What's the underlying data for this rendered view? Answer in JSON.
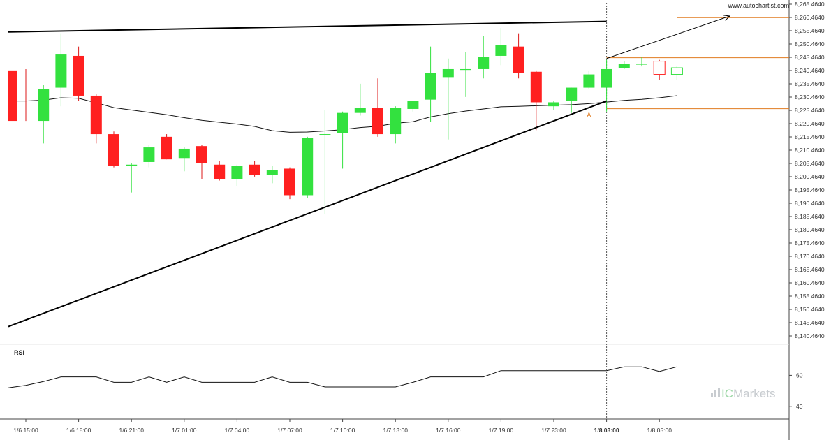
{
  "source_text": "www.autochartist.com",
  "brand": {
    "prefix": "IC",
    "name": "Markets"
  },
  "chart_data": {
    "type": "candlestick",
    "price_axis": {
      "min": 8140.464,
      "max": 8265.464,
      "ticks": [
        "8,265.4640",
        "8,260.4640",
        "8,255.4640",
        "8,250.4640",
        "8,245.4640",
        "8,240.4640",
        "8,235.4640",
        "8,230.4640",
        "8,225.4640",
        "8,220.4640",
        "8,215.4640",
        "8,210.4640",
        "8,205.4640",
        "8,200.4640",
        "8,195.4640",
        "8,190.4640",
        "8,185.4640",
        "8,180.4640",
        "8,175.4640",
        "8,170.4640",
        "8,165.4640",
        "8,160.4640",
        "8,155.4640",
        "8,150.4640",
        "8,145.4640",
        "8,140.4640"
      ]
    },
    "time_axis": {
      "labels": [
        {
          "bar": 0,
          "text": "1/6 15:00"
        },
        {
          "bar": 3,
          "text": "1/6 18:00"
        },
        {
          "bar": 6,
          "text": "1/6 21:00"
        },
        {
          "bar": 9,
          "text": "1/7 01:00"
        },
        {
          "bar": 12,
          "text": "1/7 04:00"
        },
        {
          "bar": 15,
          "text": "1/7 07:00"
        },
        {
          "bar": 18,
          "text": "1/7 10:00"
        },
        {
          "bar": 21,
          "text": "1/7 13:00"
        },
        {
          "bar": 24,
          "text": "1/7 16:00"
        },
        {
          "bar": 27,
          "text": "1/7 19:00"
        },
        {
          "bar": 30,
          "text": "1/7 23:00"
        },
        {
          "bar": 33,
          "text": "1/8 03:00",
          "bold": true
        },
        {
          "bar": 36,
          "text": "1/8 05:00"
        }
      ]
    },
    "candles": [
      {
        "o": 8240.5,
        "h": 8241.0,
        "l": 8221.5,
        "c": 8221.5
      },
      {
        "o": 8221.5,
        "h": 8235.0,
        "l": 8213.0,
        "c": 8233.5
      },
      {
        "o": 8234.0,
        "h": 8254.5,
        "l": 8227.0,
        "c": 8246.5
      },
      {
        "o": 8246.0,
        "h": 8249.5,
        "l": 8229.0,
        "c": 8231.0
      },
      {
        "o": 8231.0,
        "h": 8231.5,
        "l": 8213.0,
        "c": 8216.5
      },
      {
        "o": 8216.5,
        "h": 8217.5,
        "l": 8204.0,
        "c": 8204.5
      },
      {
        "o": 8204.5,
        "h": 8205.5,
        "l": 8194.5,
        "c": 8205.0
      },
      {
        "o": 8206.0,
        "h": 8212.5,
        "l": 8204.0,
        "c": 8211.5
      },
      {
        "o": 8215.5,
        "h": 8216.5,
        "l": 8207.0,
        "c": 8207.0
      },
      {
        "o": 8207.5,
        "h": 8211.5,
        "l": 8202.5,
        "c": 8211.0
      },
      {
        "o": 8212.0,
        "h": 8212.5,
        "l": 8199.5,
        "c": 8205.5
      },
      {
        "o": 8205.0,
        "h": 8206.5,
        "l": 8199.0,
        "c": 8199.5
      },
      {
        "o": 8199.5,
        "h": 8205.0,
        "l": 8197.0,
        "c": 8204.5
      },
      {
        "o": 8205.0,
        "h": 8206.5,
        "l": 8200.5,
        "c": 8201.0
      },
      {
        "o": 8201.0,
        "h": 8204.5,
        "l": 8198.0,
        "c": 8203.0
      },
      {
        "o": 8203.5,
        "h": 8204.0,
        "l": 8192.0,
        "c": 8193.5
      },
      {
        "o": 8193.5,
        "h": 8215.5,
        "l": 8192.5,
        "c": 8215.0
      },
      {
        "o": 8216.5,
        "h": 8225.5,
        "l": 8186.5,
        "c": 8216.5
      },
      {
        "o": 8217.0,
        "h": 8225.0,
        "l": 8203.5,
        "c": 8224.5
      },
      {
        "o": 8224.5,
        "h": 8235.5,
        "l": 8223.5,
        "c": 8226.5
      },
      {
        "o": 8226.5,
        "h": 8237.5,
        "l": 8215.5,
        "c": 8216.5
      },
      {
        "o": 8216.5,
        "h": 8227.0,
        "l": 8213.0,
        "c": 8226.5
      },
      {
        "o": 8226.0,
        "h": 8229.0,
        "l": 8225.0,
        "c": 8229.0
      },
      {
        "o": 8229.5,
        "h": 8249.5,
        "l": 8221.0,
        "c": 8239.5
      },
      {
        "o": 8238.0,
        "h": 8245.0,
        "l": 8214.5,
        "c": 8241.0
      },
      {
        "o": 8241.0,
        "h": 8247.5,
        "l": 8230.5,
        "c": 8241.0
      },
      {
        "o": 8241.0,
        "h": 8253.5,
        "l": 8237.5,
        "c": 8245.5
      },
      {
        "o": 8246.0,
        "h": 8256.5,
        "l": 8242.5,
        "c": 8250.0
      },
      {
        "o": 8249.5,
        "h": 8254.5,
        "l": 8237.5,
        "c": 8239.5
      },
      {
        "o": 8240.0,
        "h": 8240.5,
        "l": 8218.0,
        "c": 8228.5
      },
      {
        "o": 8227.0,
        "h": 8229.0,
        "l": 8225.5,
        "c": 8228.5
      },
      {
        "o": 8229.0,
        "h": 8234.0,
        "l": 8224.5,
        "c": 8234.0
      },
      {
        "o": 8234.0,
        "h": 8240.5,
        "l": 8233.5,
        "c": 8239.0
      },
      {
        "o": 8234.0,
        "h": 8244.5,
        "l": 8225.0,
        "c": 8241.0
      },
      {
        "o": 8241.5,
        "h": 8244.0,
        "l": 8241.0,
        "c": 8243.0
      },
      {
        "o": 8243.0,
        "h": 8245.5,
        "l": 8242.0,
        "c": 8243.0
      },
      {
        "o": 8244.0,
        "h": 8244.5,
        "l": 8237.0,
        "c": 8239.0
      },
      {
        "o": 8239.0,
        "h": 8242.0,
        "l": 8237.0,
        "c": 8241.5
      }
    ],
    "moving_average": [
      8229.0,
      8229.3,
      8230.2,
      8230.0,
      8228.3,
      8226.5,
      8225.6,
      8224.7,
      8223.8,
      8222.7,
      8221.7,
      8221.0,
      8220.3,
      8219.4,
      8217.8,
      8217.2,
      8217.3,
      8217.7,
      8218.2,
      8219.0,
      8219.5,
      8220.6,
      8221.2,
      8223.0,
      8224.2,
      8225.2,
      8226.0,
      8226.8,
      8227.0,
      8227.2,
      8227.4,
      8227.6,
      8228.0,
      8228.6,
      8229.2,
      8229.6,
      8230.2,
      8231.0
    ],
    "trendlines": [
      {
        "role": "resistance",
        "from": {
          "bar": -0.1,
          "price": 8255.0
        },
        "to": {
          "bar": 33.0,
          "price": 8259.0
        }
      },
      {
        "role": "support",
        "from": {
          "bar": -0.1,
          "price": 8144.0
        },
        "to": {
          "bar": 33.0,
          "price": 8229.0
        }
      }
    ],
    "forecast_arrow": {
      "from": {
        "bar": 33.0,
        "price": 8245.0
      },
      "to": {
        "bar": 40.0,
        "price": 8261.0
      }
    },
    "levels": [
      {
        "price": 8260.4,
        "from_bar": 37.0
      },
      {
        "price": 8245.3,
        "from_bar": 33.0
      },
      {
        "price": 8226.1,
        "from_bar": 33.0
      }
    ],
    "marker": {
      "text": "A",
      "bar": 32.0,
      "price": 8223.0
    },
    "rsi": {
      "label": "RSI",
      "ticks": [
        "60",
        "40"
      ],
      "tick_values": [
        60,
        40
      ],
      "range": [
        31.8,
        80.0
      ],
      "values": [
        53.5,
        56.0,
        59.0,
        59.0,
        59.0,
        55.5,
        55.5,
        59.0,
        55.5,
        59.0,
        55.5,
        55.5,
        55.5,
        55.5,
        59.0,
        55.5,
        55.5,
        52.5,
        52.5,
        52.5,
        52.5,
        52.5,
        55.5,
        59.0,
        59.0,
        59.0,
        59.0,
        63.0,
        63.0,
        63.0,
        63.0,
        63.0,
        63.0,
        63.0,
        65.5,
        65.5,
        62.5,
        65.5
      ]
    }
  }
}
